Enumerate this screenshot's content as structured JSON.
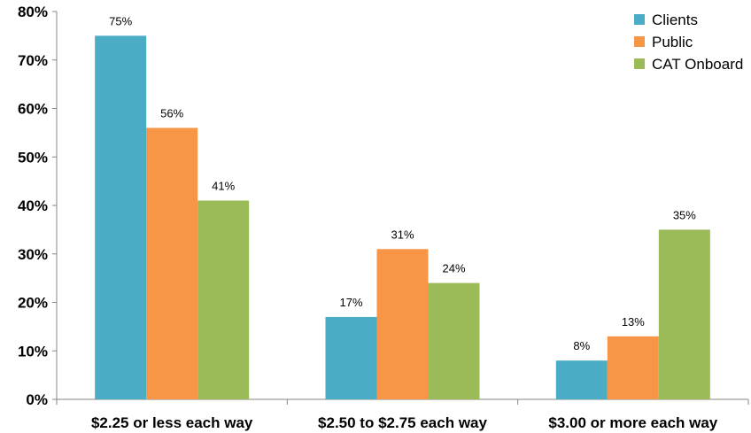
{
  "chart_data": {
    "type": "bar",
    "categories": [
      "$2.25 or less each way",
      "$2.50 to $2.75 each way",
      "$3.00 or more each way"
    ],
    "series": [
      {
        "name": "Clients",
        "color": "#4bacc6",
        "values": [
          75,
          17,
          8
        ],
        "labels": [
          "75%",
          "17%",
          "8%"
        ]
      },
      {
        "name": "Public",
        "color": "#f79646",
        "values": [
          56,
          31,
          13
        ],
        "labels": [
          "56%",
          "31%",
          "13%"
        ]
      },
      {
        "name": "CAT Onboard",
        "color": "#9bbb59",
        "values": [
          41,
          24,
          35
        ],
        "labels": [
          "41%",
          "24%",
          "35%"
        ]
      }
    ],
    "ylim": [
      0,
      80
    ],
    "yticks": [
      0,
      10,
      20,
      30,
      40,
      50,
      60,
      70,
      80
    ],
    "ytick_labels": [
      "0%",
      "10%",
      "20%",
      "30%",
      "40%",
      "50%",
      "60%",
      "70%",
      "80%"
    ],
    "grid": false,
    "legend_position": "top-right",
    "title": "",
    "xlabel": "",
    "ylabel": ""
  }
}
